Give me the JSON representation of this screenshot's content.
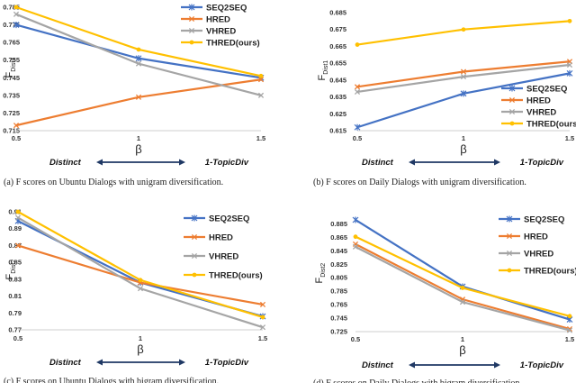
{
  "series_styles": [
    {
      "name": "SEQ2SEQ",
      "color": "#4472C4",
      "marker": "star"
    },
    {
      "name": "HRED",
      "color": "#ED7D31",
      "marker": "x"
    },
    {
      "name": "VHRED",
      "color": "#A5A5A5",
      "marker": "x"
    },
    {
      "name": "THRED(ours)",
      "color": "#FFC000",
      "marker": "dot"
    }
  ],
  "chart_data": [
    {
      "id": "a",
      "type": "line",
      "x": [
        0.5,
        1,
        1.5
      ],
      "x_ticks": [
        "0.5",
        "1",
        "1.5"
      ],
      "xlabel": "β",
      "ylabel_main": "F",
      "ylabel_sub": "Dist1",
      "ylim": [
        0.715,
        0.785
      ],
      "y_ticks": [
        "0.715",
        "0.725",
        "0.735",
        "0.745",
        "0.755",
        "0.765",
        "0.775",
        "0.785"
      ],
      "legend_position": "top-right",
      "series": [
        {
          "name": "SEQ2SEQ",
          "values": [
            0.775,
            0.756,
            0.745
          ]
        },
        {
          "name": "HRED",
          "values": [
            0.718,
            0.734,
            0.744
          ]
        },
        {
          "name": "VHRED",
          "values": [
            0.781,
            0.753,
            0.735
          ]
        },
        {
          "name": "THRED(ours)",
          "values": [
            0.785,
            0.761,
            0.746
          ]
        }
      ],
      "arrow_left": "Distinct",
      "arrow_right": "1-TopicDiv",
      "caption": "(a)  F scores on Ubuntu Dialogs with unigram diversification."
    },
    {
      "id": "b",
      "type": "line",
      "x": [
        0.5,
        1,
        1.5
      ],
      "x_ticks": [
        "0.5",
        "1",
        "1.5"
      ],
      "xlabel": "β",
      "ylabel_main": "F",
      "ylabel_sub": "Dist1",
      "ylim": [
        0.615,
        0.685
      ],
      "y_ticks": [
        "0.615",
        "0.625",
        "0.635",
        "0.645",
        "0.655",
        "0.665",
        "0.675",
        "0.685"
      ],
      "legend_position": "bottom-right",
      "series": [
        {
          "name": "SEQ2SEQ",
          "values": [
            0.617,
            0.637,
            0.649
          ]
        },
        {
          "name": "HRED",
          "values": [
            0.641,
            0.65,
            0.656
          ]
        },
        {
          "name": "VHRED",
          "values": [
            0.638,
            0.647,
            0.654
          ]
        },
        {
          "name": "THRED(ours)",
          "values": [
            0.666,
            0.675,
            0.68
          ]
        }
      ],
      "arrow_left": "Distinct",
      "arrow_right": "1-TopicDiv",
      "caption": "(b)  F scores on Daily Dialogs with unigram diversification."
    },
    {
      "id": "c",
      "type": "line",
      "x": [
        0.5,
        1,
        1.5
      ],
      "x_ticks": [
        "0.5",
        "1",
        "1.5"
      ],
      "xlabel": "β",
      "ylabel_main": "F",
      "ylabel_sub": "Dist2",
      "ylim": [
        0.77,
        0.91
      ],
      "y_ticks": [
        "0.77",
        "0.79",
        "0.81",
        "0.83",
        "0.85",
        "0.87",
        "0.89",
        "0.91"
      ],
      "legend_position": "top-right",
      "series": [
        {
          "name": "SEQ2SEQ",
          "values": [
            0.899,
            0.826,
            0.786
          ]
        },
        {
          "name": "HRED",
          "values": [
            0.87,
            0.826,
            0.8
          ]
        },
        {
          "name": "VHRED",
          "values": [
            0.903,
            0.819,
            0.773
          ]
        },
        {
          "name": "THRED(ours)",
          "values": [
            0.91,
            0.829,
            0.785
          ]
        }
      ],
      "arrow_left": "Distinct",
      "arrow_right": "1-TopicDiv",
      "caption": "(c)  F scores on Ubuntu Dialogs with bigram diversification."
    },
    {
      "id": "d",
      "type": "line",
      "x": [
        0.5,
        1,
        1.5
      ],
      "x_ticks": [
        "0.5",
        "1",
        "1.5"
      ],
      "xlabel": "β",
      "ylabel_main": "F",
      "ylabel_sub": "Dist2",
      "ylim": [
        0.725,
        0.895
      ],
      "y_ticks": [
        "0.725",
        "0.745",
        "0.765",
        "0.785",
        "0.805",
        "0.825",
        "0.845",
        "0.865",
        "0.885"
      ],
      "legend_position": "top-right",
      "series": [
        {
          "name": "SEQ2SEQ",
          "values": [
            0.891,
            0.792,
            0.743
          ]
        },
        {
          "name": "HRED",
          "values": [
            0.855,
            0.773,
            0.729
          ]
        },
        {
          "name": "VHRED",
          "values": [
            0.851,
            0.769,
            0.727
          ]
        },
        {
          "name": "THRED(ours)",
          "values": [
            0.866,
            0.79,
            0.748
          ]
        }
      ],
      "arrow_left": "Distinct",
      "arrow_right": "1-TopicDiv",
      "caption": "(d)  F scores on Daily Dialogs with bigram diversification."
    }
  ]
}
